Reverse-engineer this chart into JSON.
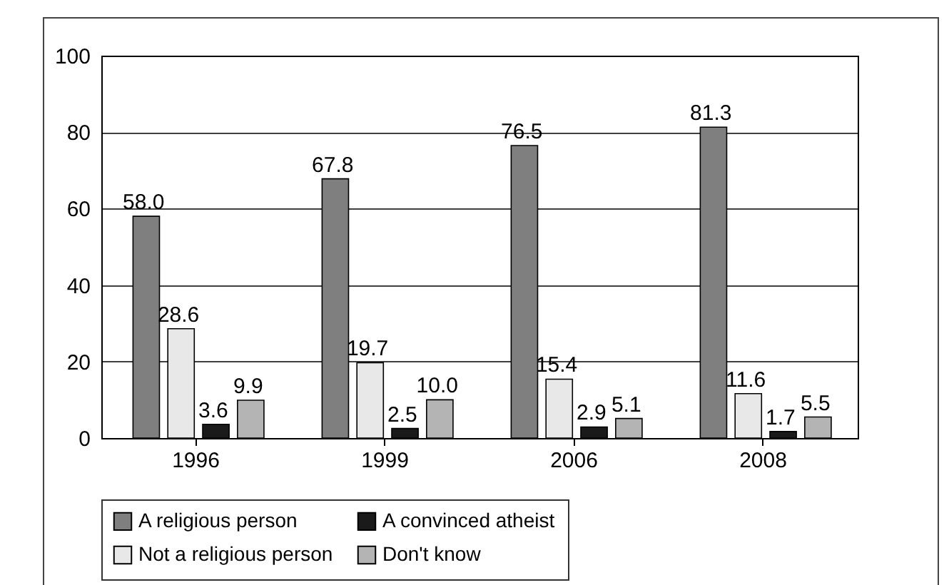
{
  "chart_data": {
    "type": "bar",
    "categories": [
      "1996",
      "1999",
      "2006",
      "2008"
    ],
    "series": [
      {
        "name": "A religious person",
        "color": "#7f7f7f",
        "values": [
          58.0,
          67.8,
          76.5,
          81.3
        ],
        "value_labels": [
          "58.0",
          "67.8",
          "76.5",
          "81.3"
        ]
      },
      {
        "name": "Not a religious person",
        "color": "#e8e8e8",
        "values": [
          28.6,
          19.7,
          15.4,
          11.6
        ],
        "value_labels": [
          "28.6",
          "19.7",
          "15.4",
          "11.6"
        ]
      },
      {
        "name": "A convinced atheist",
        "color": "#1a1a1a",
        "values": [
          3.6,
          2.5,
          2.9,
          1.7
        ],
        "value_labels": [
          "3.6",
          "2.5",
          "2.9",
          "1.7"
        ]
      },
      {
        "name": "Don't know",
        "color": "#b4b4b4",
        "values": [
          9.9,
          10.0,
          5.1,
          5.5
        ],
        "value_labels": [
          "9.9",
          "10.0",
          "5.1",
          "5.5"
        ]
      }
    ],
    "ylim": [
      0,
      100
    ],
    "yticks": [
      0,
      20,
      40,
      60,
      80,
      100
    ],
    "grid": "y",
    "legend": "bottom"
  }
}
